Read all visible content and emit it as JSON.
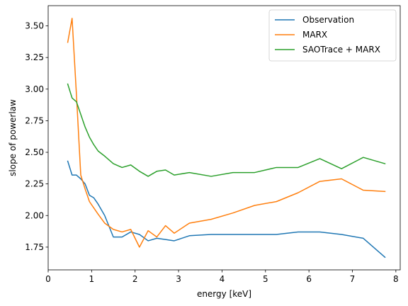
{
  "chart_data": {
    "type": "line",
    "xlabel": "energy [keV]",
    "ylabel": "slope of powerlaw",
    "xlim": [
      0,
      8.1
    ],
    "ylim": [
      1.57,
      3.66
    ],
    "xticks": [
      0,
      1,
      2,
      3,
      4,
      5,
      6,
      7,
      8
    ],
    "xtick_labels": [
      "0",
      "1",
      "2",
      "3",
      "4",
      "5",
      "6",
      "7",
      "8"
    ],
    "yticks": [
      1.75,
      2.0,
      2.25,
      2.5,
      2.75,
      3.0,
      3.25,
      3.5
    ],
    "ytick_labels": [
      "1.75",
      "2.00",
      "2.25",
      "2.50",
      "2.75",
      "3.00",
      "3.25",
      "3.50"
    ],
    "grid": false,
    "legend_position": "top-right",
    "series": [
      {
        "name": "Observation",
        "color": "#1f77b4",
        "x": [
          0.45,
          0.55,
          0.65,
          0.75,
          0.85,
          0.95,
          1.05,
          1.15,
          1.3,
          1.5,
          1.7,
          1.9,
          2.1,
          2.3,
          2.5,
          2.7,
          2.9,
          3.25,
          3.75,
          4.25,
          4.75,
          5.25,
          5.75,
          6.25,
          6.75,
          7.25,
          7.75
        ],
        "y": [
          2.43,
          2.32,
          2.32,
          2.29,
          2.25,
          2.16,
          2.14,
          2.09,
          2.0,
          1.83,
          1.83,
          1.87,
          1.85,
          1.8,
          1.82,
          1.81,
          1.8,
          1.84,
          1.85,
          1.85,
          1.85,
          1.85,
          1.87,
          1.87,
          1.85,
          1.82,
          1.67
        ]
      },
      {
        "name": "MARX",
        "color": "#ff7f0e",
        "x": [
          0.45,
          0.55,
          0.65,
          0.75,
          0.85,
          0.95,
          1.05,
          1.15,
          1.3,
          1.5,
          1.7,
          1.9,
          2.1,
          2.3,
          2.5,
          2.7,
          2.9,
          3.25,
          3.75,
          4.25,
          4.75,
          5.25,
          5.75,
          6.25,
          6.75,
          7.25,
          7.75
        ],
        "y": [
          3.37,
          3.56,
          2.96,
          2.32,
          2.21,
          2.11,
          2.06,
          2.01,
          1.94,
          1.89,
          1.87,
          1.89,
          1.75,
          1.88,
          1.83,
          1.92,
          1.86,
          1.94,
          1.97,
          2.02,
          2.08,
          2.11,
          2.18,
          2.27,
          2.29,
          2.2,
          2.19
        ]
      },
      {
        "name": "SAOTrace + MARX",
        "color": "#2ca02c",
        "x": [
          0.45,
          0.55,
          0.65,
          0.75,
          0.85,
          0.95,
          1.05,
          1.15,
          1.3,
          1.5,
          1.7,
          1.9,
          2.1,
          2.3,
          2.5,
          2.7,
          2.9,
          3.25,
          3.75,
          4.25,
          4.75,
          5.25,
          5.75,
          6.25,
          6.75,
          7.25,
          7.75
        ],
        "y": [
          3.04,
          2.93,
          2.9,
          2.8,
          2.7,
          2.62,
          2.56,
          2.51,
          2.47,
          2.41,
          2.38,
          2.4,
          2.35,
          2.31,
          2.35,
          2.36,
          2.32,
          2.34,
          2.31,
          2.34,
          2.34,
          2.38,
          2.38,
          2.45,
          2.37,
          2.46,
          2.41
        ]
      }
    ]
  }
}
